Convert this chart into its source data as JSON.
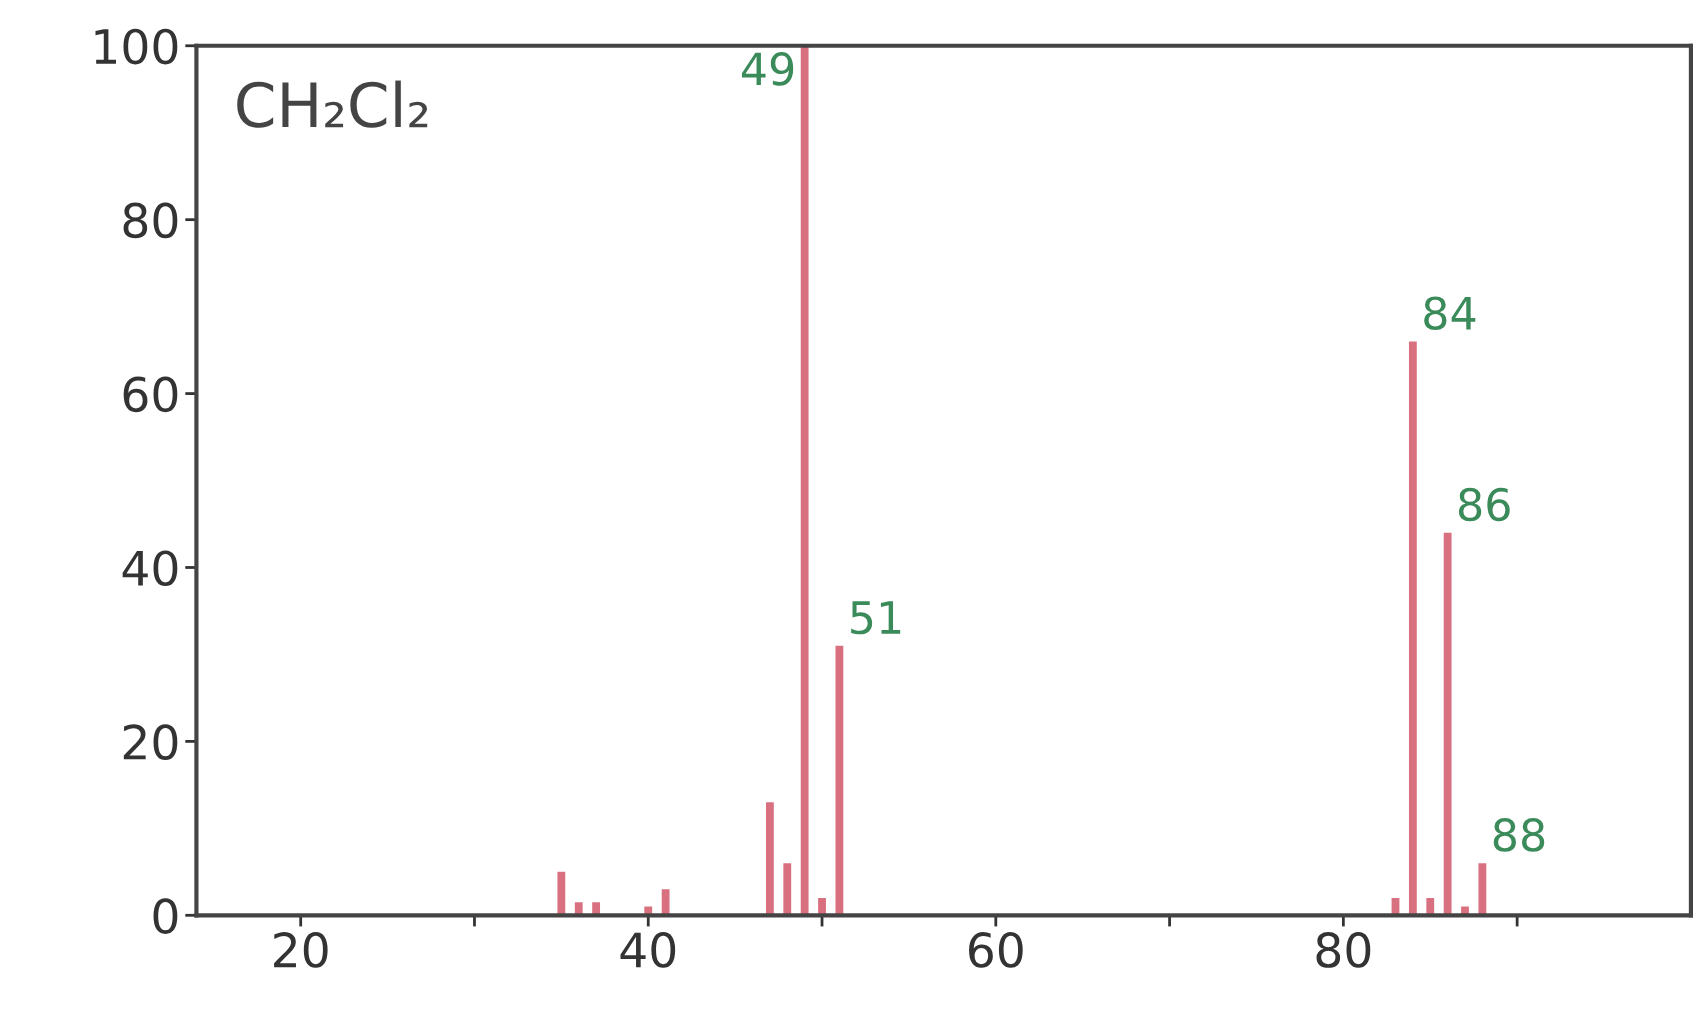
{
  "chart_data": {
    "type": "bar",
    "color": "#d9707f",
    "x": [
      35,
      36,
      37,
      40,
      41,
      47,
      48,
      49,
      50,
      51,
      83,
      84,
      85,
      86,
      87,
      88
    ],
    "values": [
      5,
      1.5,
      1.5,
      1,
      3,
      13,
      6,
      100,
      2,
      31,
      2,
      66,
      2,
      44,
      1,
      6
    ],
    "xlim": [
      14,
      100
    ],
    "xticks": [
      20,
      {
        "value": 30,
        "label": null
      },
      40,
      {
        "value": 50,
        "label": null
      },
      60,
      {
        "value": 70,
        "label": null
      },
      80,
      {
        "value": 90,
        "label": null
      }
    ],
    "ylim": [
      0,
      100
    ],
    "yticks": [
      0,
      20,
      40,
      60,
      80,
      100
    ],
    "grid": false,
    "legend": false,
    "annotations": [
      "CH₂Cl₂",
      {
        "text": "49",
        "x": 49,
        "y": 100
      },
      {
        "text": "51",
        "x": 51,
        "y": 31
      },
      {
        "text": "84",
        "x": 84,
        "y": 66
      },
      {
        "text": "86",
        "x": 86,
        "y": 44
      },
      {
        "text": "88",
        "x": 88,
        "y": 6
      }
    ]
  }
}
